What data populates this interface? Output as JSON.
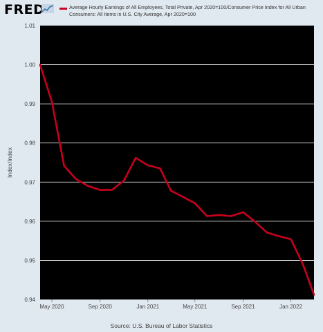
{
  "header": {
    "logo_text": "FRED",
    "logo_icon": "fred-chart-icon"
  },
  "legend": {
    "series_label": "Average Hourly Earnings of All Employees, Total Private, Apr 2020=100/Consumer Price Index for All Urban Consumers: All Items in U.S. City Average, Apr 2020=100",
    "color": "#c8001e"
  },
  "source": "Source: U.S. Bureau of Labor Statistics",
  "chart_data": {
    "type": "line",
    "title": "",
    "ylabel": "Index/Index",
    "xlabel": "",
    "ylim": [
      0.94,
      1.01
    ],
    "yticks": [
      "0.94",
      "0.95",
      "0.96",
      "0.97",
      "0.98",
      "0.99",
      "1.00",
      "1.01"
    ],
    "xticks": [
      "May 2020",
      "Sep 2020",
      "Jan 2021",
      "May 2021",
      "Sep 2021",
      "Jan 2022"
    ],
    "grid": true,
    "legend_position": "top",
    "colors": {
      "background": "#000000",
      "line": "#c8001e",
      "grid": "#ffffff"
    },
    "series": [
      {
        "name": "Average Hourly Earnings of All Employees, Total Private, Apr 2020=100/Consumer Price Index for All Urban Consumers: All Items in U.S. City Average, Apr 2020=100",
        "x": [
          "2020-04",
          "2020-05",
          "2020-06",
          "2020-07",
          "2020-08",
          "2020-09",
          "2020-10",
          "2020-11",
          "2020-12",
          "2021-01",
          "2021-02",
          "2021-03",
          "2021-04",
          "2021-05",
          "2021-06",
          "2021-07",
          "2021-08",
          "2021-09",
          "2021-10",
          "2021-11",
          "2021-12",
          "2022-01",
          "2022-02",
          "2022-03"
        ],
        "values": [
          1.0,
          0.9905,
          0.9742,
          0.9708,
          0.969,
          0.968,
          0.968,
          0.9704,
          0.9762,
          0.9743,
          0.9735,
          0.9678,
          0.9662,
          0.9646,
          0.9613,
          0.9616,
          0.9613,
          0.9623,
          0.9599,
          0.9571,
          0.9562,
          0.9554,
          0.9489,
          0.9412
        ]
      }
    ]
  }
}
